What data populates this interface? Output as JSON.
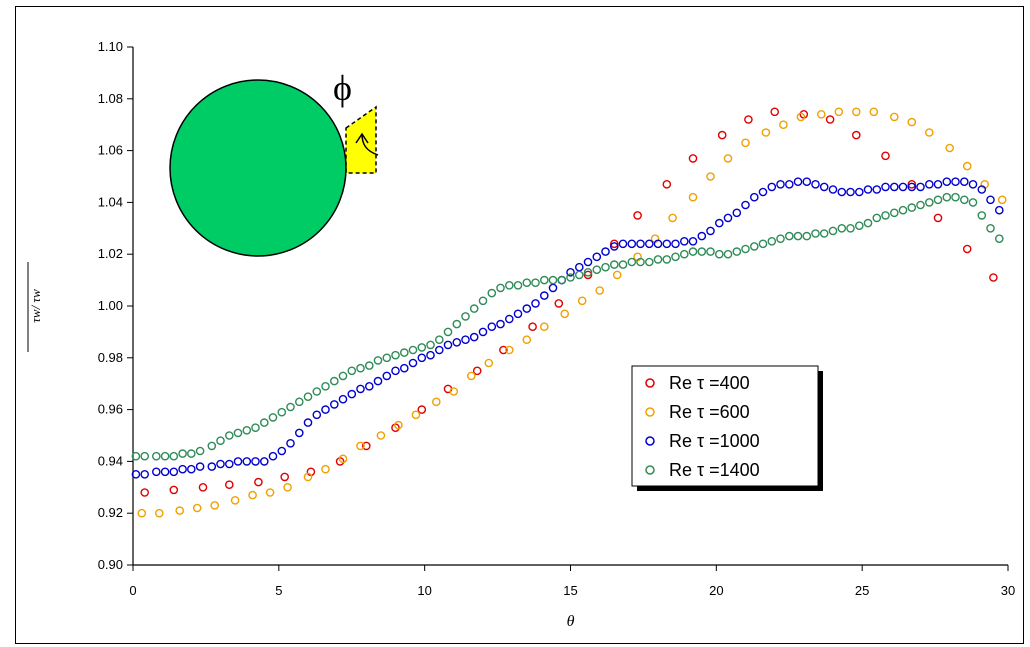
{
  "chart_data": {
    "type": "scatter",
    "xlabel": "θ",
    "ylabel": "τw/ τw",
    "xlim": [
      0,
      30
    ],
    "ylim": [
      0.9,
      1.1
    ],
    "x_ticks": [
      "0",
      "5",
      "10",
      "15",
      "20",
      "25",
      "30"
    ],
    "y_ticks": [
      "0.90",
      "0.92",
      "0.94",
      "0.96",
      "0.98",
      "1.00",
      "1.02",
      "1.04",
      "1.06",
      "1.08",
      "1.10"
    ],
    "grid": false,
    "legend_position": "bottom-right",
    "inset_symbol": "ϕ",
    "series": [
      {
        "name": "Re τ =400",
        "color": "#e00000",
        "x": [
          0.4,
          1.4,
          2.4,
          3.3,
          4.3,
          5.2,
          6.1,
          7.1,
          8.0,
          9.0,
          9.9,
          10.8,
          11.8,
          12.7,
          13.7,
          14.6,
          15.6,
          16.5,
          17.3,
          18.3,
          19.2,
          20.2,
          21.1,
          22.0,
          23.0,
          23.9,
          24.8,
          25.8,
          26.7,
          27.6,
          28.6,
          29.5
        ],
        "y": [
          0.928,
          0.929,
          0.93,
          0.931,
          0.932,
          0.934,
          0.936,
          0.94,
          0.946,
          0.953,
          0.96,
          0.968,
          0.975,
          0.983,
          0.992,
          1.001,
          1.012,
          1.024,
          1.035,
          1.047,
          1.057,
          1.066,
          1.072,
          1.075,
          1.074,
          1.072,
          1.066,
          1.058,
          1.047,
          1.034,
          1.022,
          1.011
        ]
      },
      {
        "name": "Re τ =600",
        "color": "#f0a000",
        "x": [
          0.3,
          0.9,
          1.6,
          2.2,
          2.8,
          3.5,
          4.1,
          4.7,
          5.3,
          6.0,
          6.6,
          7.2,
          7.8,
          8.5,
          9.1,
          9.7,
          10.4,
          11.0,
          11.6,
          12.2,
          12.9,
          13.5,
          14.1,
          14.8,
          15.4,
          16.0,
          16.6,
          17.3,
          17.9,
          18.5,
          19.2,
          19.8,
          20.4,
          21.0,
          21.7,
          22.3,
          22.9,
          23.6,
          24.2,
          24.8,
          25.4,
          26.1,
          26.7,
          27.3,
          28.0,
          28.6,
          29.2,
          29.8
        ],
        "y": [
          0.92,
          0.92,
          0.921,
          0.922,
          0.923,
          0.925,
          0.927,
          0.928,
          0.93,
          0.934,
          0.937,
          0.941,
          0.946,
          0.95,
          0.954,
          0.958,
          0.963,
          0.967,
          0.973,
          0.978,
          0.983,
          0.987,
          0.992,
          0.997,
          1.002,
          1.006,
          1.012,
          1.019,
          1.026,
          1.034,
          1.042,
          1.05,
          1.057,
          1.063,
          1.067,
          1.07,
          1.073,
          1.074,
          1.075,
          1.075,
          1.075,
          1.073,
          1.071,
          1.067,
          1.061,
          1.054,
          1.047,
          1.041
        ]
      },
      {
        "name": "Re τ =1000",
        "color": "#0000d0",
        "x": [
          0.1,
          0.4,
          0.8,
          1.1,
          1.4,
          1.7,
          2.0,
          2.3,
          2.7,
          3.0,
          3.3,
          3.6,
          3.9,
          4.2,
          4.5,
          4.8,
          5.1,
          5.4,
          5.7,
          6.0,
          6.3,
          6.6,
          6.9,
          7.2,
          7.5,
          7.8,
          8.1,
          8.4,
          8.7,
          9.0,
          9.3,
          9.6,
          9.9,
          10.2,
          10.5,
          10.8,
          11.1,
          11.4,
          11.7,
          12.0,
          12.3,
          12.6,
          12.9,
          13.2,
          13.5,
          13.8,
          14.1,
          14.4,
          14.7,
          15.0,
          15.3,
          15.6,
          15.9,
          16.2,
          16.5,
          16.8,
          17.1,
          17.4,
          17.7,
          18.0,
          18.3,
          18.6,
          18.9,
          19.2,
          19.5,
          19.8,
          20.1,
          20.4,
          20.7,
          21.0,
          21.3,
          21.6,
          21.9,
          22.2,
          22.5,
          22.8,
          23.1,
          23.4,
          23.7,
          24.0,
          24.3,
          24.6,
          24.9,
          25.2,
          25.5,
          25.8,
          26.1,
          26.4,
          26.7,
          27.0,
          27.3,
          27.6,
          27.9,
          28.2,
          28.5,
          28.8,
          29.1,
          29.4,
          29.7
        ],
        "y": [
          0.935,
          0.935,
          0.936,
          0.936,
          0.936,
          0.937,
          0.937,
          0.938,
          0.938,
          0.939,
          0.939,
          0.94,
          0.94,
          0.94,
          0.94,
          0.942,
          0.944,
          0.947,
          0.951,
          0.955,
          0.958,
          0.96,
          0.962,
          0.964,
          0.966,
          0.968,
          0.969,
          0.971,
          0.973,
          0.975,
          0.976,
          0.978,
          0.98,
          0.981,
          0.983,
          0.985,
          0.986,
          0.987,
          0.988,
          0.99,
          0.992,
          0.993,
          0.995,
          0.997,
          0.999,
          1.001,
          1.004,
          1.007,
          1.01,
          1.013,
          1.015,
          1.017,
          1.019,
          1.021,
          1.023,
          1.024,
          1.024,
          1.024,
          1.024,
          1.024,
          1.024,
          1.024,
          1.025,
          1.025,
          1.027,
          1.029,
          1.032,
          1.034,
          1.036,
          1.039,
          1.042,
          1.044,
          1.046,
          1.047,
          1.047,
          1.048,
          1.048,
          1.047,
          1.046,
          1.045,
          1.044,
          1.044,
          1.044,
          1.045,
          1.045,
          1.046,
          1.046,
          1.046,
          1.046,
          1.046,
          1.047,
          1.047,
          1.048,
          1.048,
          1.048,
          1.047,
          1.045,
          1.041,
          1.037
        ]
      },
      {
        "name": "Re τ =1400",
        "color": "#2e8b57",
        "x": [
          0.1,
          0.4,
          0.8,
          1.1,
          1.4,
          1.7,
          2.0,
          2.3,
          2.7,
          3.0,
          3.3,
          3.6,
          3.9,
          4.2,
          4.5,
          4.8,
          5.1,
          5.4,
          5.7,
          6.0,
          6.3,
          6.6,
          6.9,
          7.2,
          7.5,
          7.8,
          8.1,
          8.4,
          8.7,
          9.0,
          9.3,
          9.6,
          9.9,
          10.2,
          10.5,
          10.8,
          11.1,
          11.4,
          11.7,
          12.0,
          12.3,
          12.6,
          12.9,
          13.2,
          13.5,
          13.8,
          14.1,
          14.4,
          14.7,
          15.0,
          15.3,
          15.6,
          15.9,
          16.2,
          16.5,
          16.8,
          17.1,
          17.4,
          17.7,
          18.0,
          18.3,
          18.6,
          18.9,
          19.2,
          19.5,
          19.8,
          20.1,
          20.4,
          20.7,
          21.0,
          21.3,
          21.6,
          21.9,
          22.2,
          22.5,
          22.8,
          23.1,
          23.4,
          23.7,
          24.0,
          24.3,
          24.6,
          24.9,
          25.2,
          25.5,
          25.8,
          26.1,
          26.4,
          26.7,
          27.0,
          27.3,
          27.6,
          27.9,
          28.2,
          28.5,
          28.8,
          29.1,
          29.4,
          29.7
        ],
        "y": [
          0.942,
          0.942,
          0.942,
          0.942,
          0.942,
          0.943,
          0.943,
          0.944,
          0.946,
          0.948,
          0.95,
          0.951,
          0.952,
          0.953,
          0.955,
          0.957,
          0.959,
          0.961,
          0.963,
          0.965,
          0.967,
          0.969,
          0.971,
          0.973,
          0.975,
          0.976,
          0.977,
          0.979,
          0.98,
          0.981,
          0.982,
          0.983,
          0.984,
          0.985,
          0.987,
          0.99,
          0.993,
          0.996,
          0.999,
          1.002,
          1.005,
          1.007,
          1.008,
          1.008,
          1.009,
          1.009,
          1.01,
          1.01,
          1.01,
          1.011,
          1.012,
          1.013,
          1.014,
          1.015,
          1.016,
          1.016,
          1.017,
          1.017,
          1.017,
          1.018,
          1.018,
          1.019,
          1.02,
          1.021,
          1.021,
          1.021,
          1.02,
          1.02,
          1.021,
          1.022,
          1.023,
          1.024,
          1.025,
          1.026,
          1.027,
          1.027,
          1.027,
          1.028,
          1.028,
          1.029,
          1.03,
          1.03,
          1.031,
          1.032,
          1.034,
          1.035,
          1.036,
          1.037,
          1.038,
          1.039,
          1.04,
          1.041,
          1.042,
          1.042,
          1.041,
          1.04,
          1.035,
          1.03,
          1.026
        ]
      }
    ]
  }
}
